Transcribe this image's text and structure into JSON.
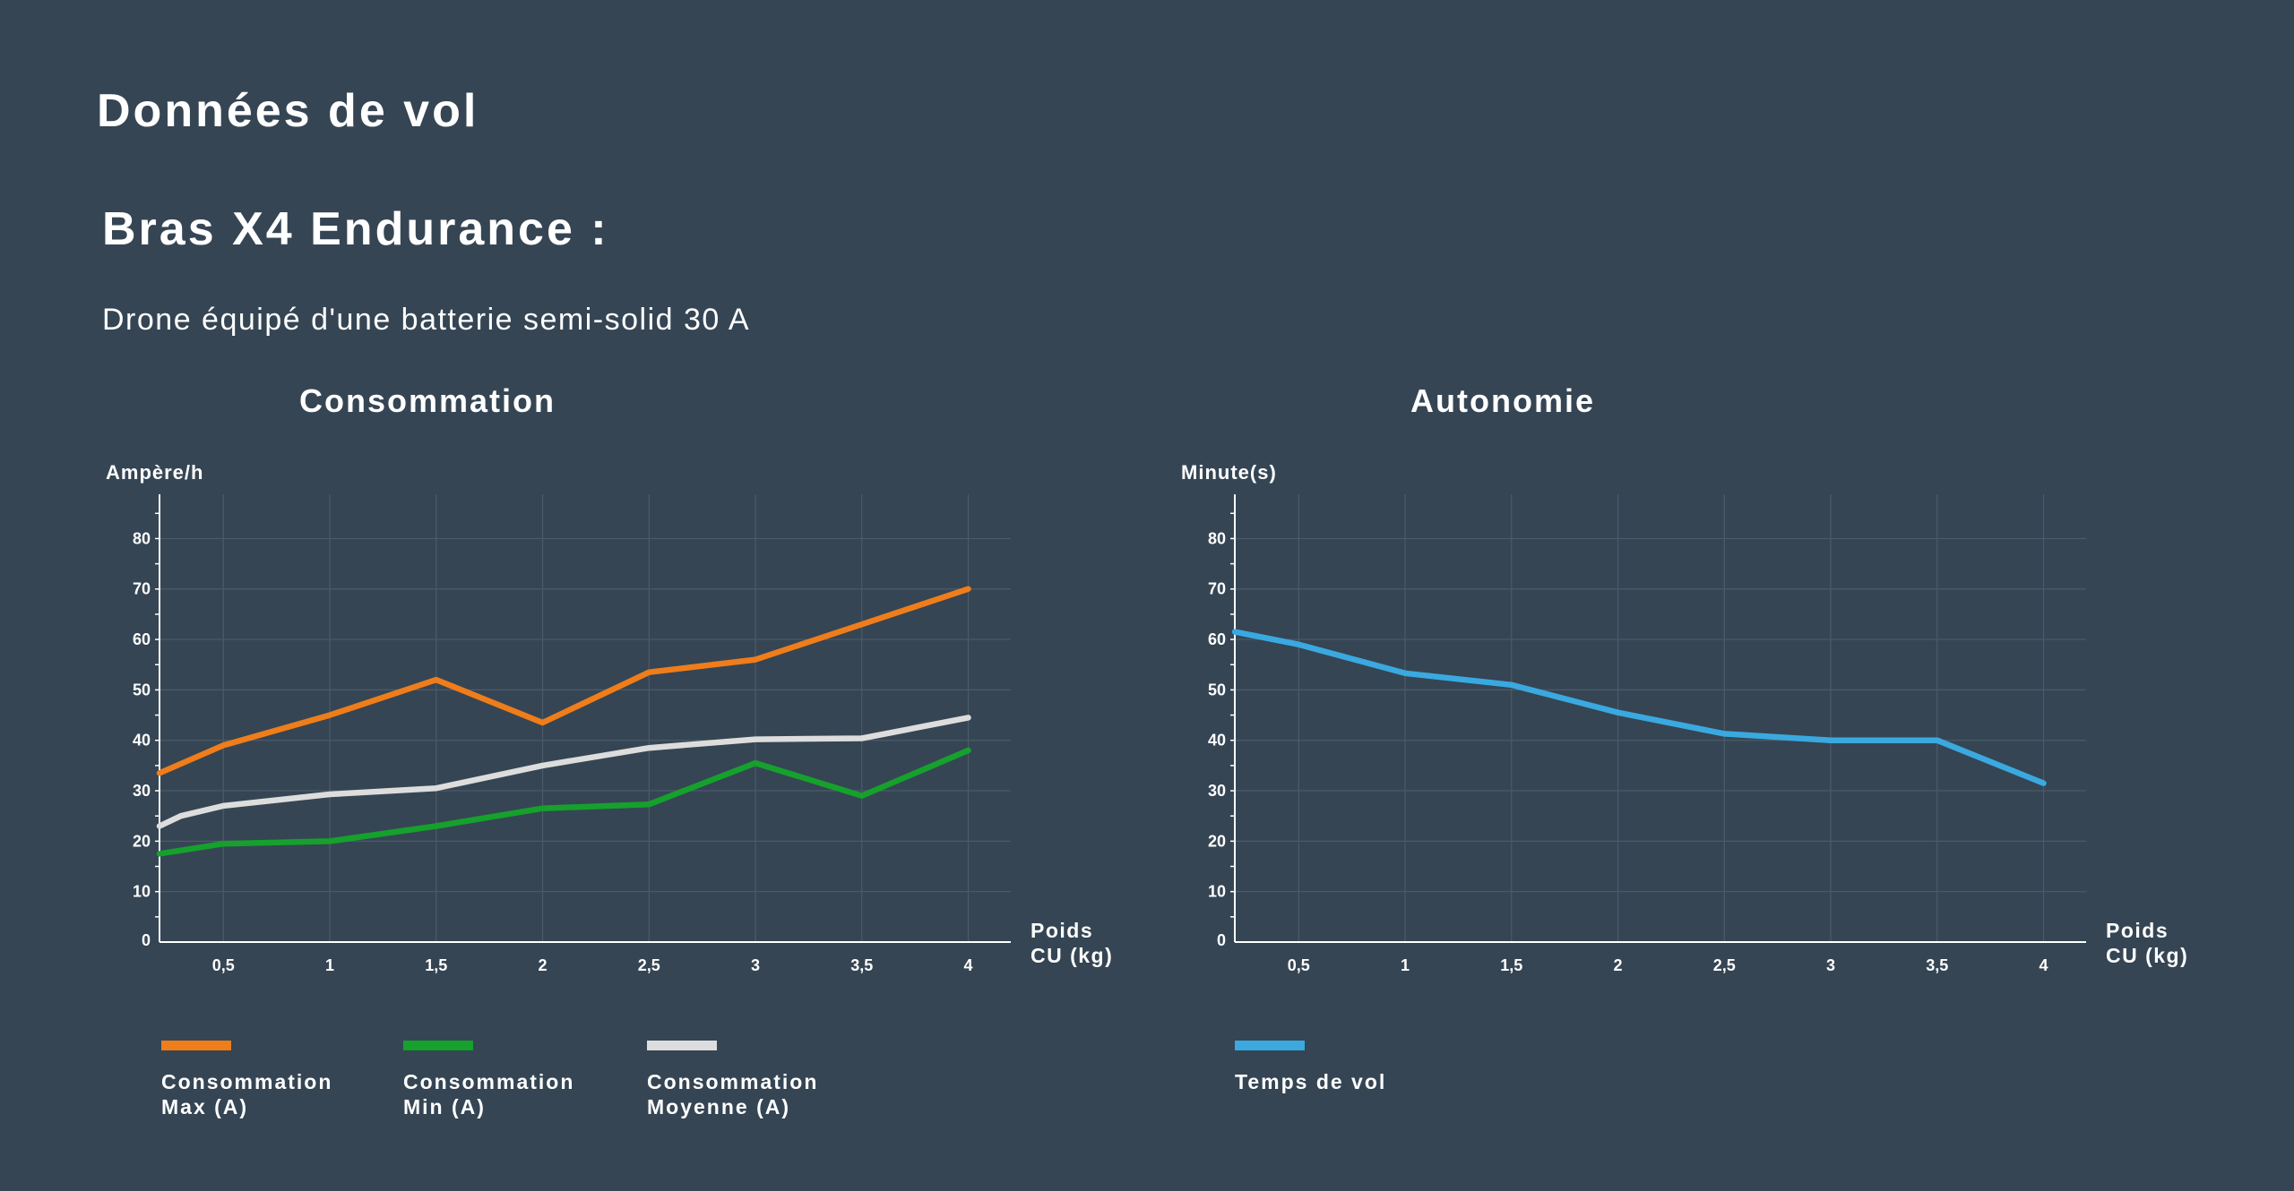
{
  "page": {
    "title": "Données de vol",
    "section_title": "Bras X4 Endurance :",
    "subtitle": "Drone équipé d'une batterie semi-solid 30 A"
  },
  "chart_data": [
    {
      "type": "line",
      "title": "Consommation",
      "ylabel": "Ampère/h",
      "xlabel": [
        "Poids",
        "CU (kg)"
      ],
      "xlim": [
        0.2,
        4.2
      ],
      "ylim": [
        0,
        87
      ],
      "x_ticks": [
        0.5,
        1,
        1.5,
        2,
        2.5,
        3,
        3.5,
        4
      ],
      "x_tick_labels": [
        "0,5",
        "1",
        "1,5",
        "2",
        "2,5",
        "3",
        "3,5",
        "4"
      ],
      "y_ticks": [
        0,
        10,
        20,
        30,
        40,
        50,
        60,
        70,
        80
      ],
      "grid": true,
      "legend_position": "bottom",
      "series": [
        {
          "name": [
            "Consommation",
            "Max (A)"
          ],
          "color": "#ef7d1a",
          "x": [
            0.2,
            0.5,
            1,
            1.5,
            2,
            2.5,
            3,
            3.5,
            4
          ],
          "values": [
            33.5,
            39,
            45,
            52,
            43.5,
            53.5,
            56,
            63,
            70
          ]
        },
        {
          "name": [
            "Consommation",
            "Min (A)"
          ],
          "color": "#15a12c",
          "x": [
            0.2,
            0.5,
            1,
            1.5,
            2,
            2.5,
            3,
            3.5,
            4
          ],
          "values": [
            17.5,
            19.5,
            20,
            23,
            26.5,
            27.3,
            35.5,
            29,
            38
          ]
        },
        {
          "name": [
            "Consommation",
            "Moyenne (A)"
          ],
          "color": "#dddddd",
          "x": [
            0.2,
            0.3,
            0.5,
            1,
            1.5,
            2,
            2.5,
            3,
            3.5,
            4
          ],
          "values": [
            23,
            25,
            27,
            29.3,
            30.5,
            35,
            38.5,
            40.2,
            40.4,
            44.5
          ]
        }
      ]
    },
    {
      "type": "line",
      "title": "Autonomie",
      "ylabel": "Minute(s)",
      "xlabel": [
        "Poids",
        "CU (kg)"
      ],
      "xlim": [
        0.2,
        4.2
      ],
      "ylim": [
        0,
        87
      ],
      "x_ticks": [
        0.5,
        1,
        1.5,
        2,
        2.5,
        3,
        3.5,
        4
      ],
      "x_tick_labels": [
        "0,5",
        "1",
        "1,5",
        "2",
        "2,5",
        "3",
        "3,5",
        "4"
      ],
      "y_ticks": [
        0,
        10,
        20,
        30,
        40,
        50,
        60,
        70,
        80
      ],
      "grid": true,
      "legend_position": "bottom",
      "series": [
        {
          "name": [
            "Temps de vol"
          ],
          "color": "#3aa9e0",
          "x": [
            0.2,
            0.5,
            1,
            1.5,
            2,
            2.5,
            3,
            3.5,
            4
          ],
          "values": [
            61.5,
            59,
            53.3,
            51,
            45.5,
            41.3,
            40,
            40,
            31.5
          ]
        }
      ]
    }
  ]
}
